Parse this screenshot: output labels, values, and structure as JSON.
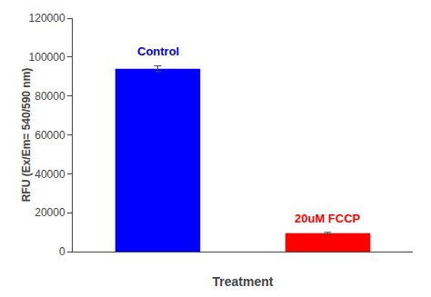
{
  "chart_data": {
    "type": "bar",
    "categories": [
      "Control",
      "20uM FCCP"
    ],
    "values": [
      94000,
      9500
    ],
    "errors": [
      1500,
      400
    ],
    "colors": [
      "#0000ff",
      "#ff0000"
    ],
    "xlabel": "Treatment",
    "ylabel": "RFU (Ex/Em= 540/590 nm)",
    "ylim": [
      0,
      120000
    ],
    "yticks": [
      0,
      20000,
      40000,
      60000,
      80000,
      100000,
      120000
    ],
    "grid": false,
    "tick_labels": "y",
    "annotations": [
      {
        "text": "Control",
        "x": "Control",
        "color": "#0000cc"
      },
      {
        "text": "20uM FCCP",
        "x": "20uM FCCP",
        "color": "#ff0000"
      }
    ]
  }
}
